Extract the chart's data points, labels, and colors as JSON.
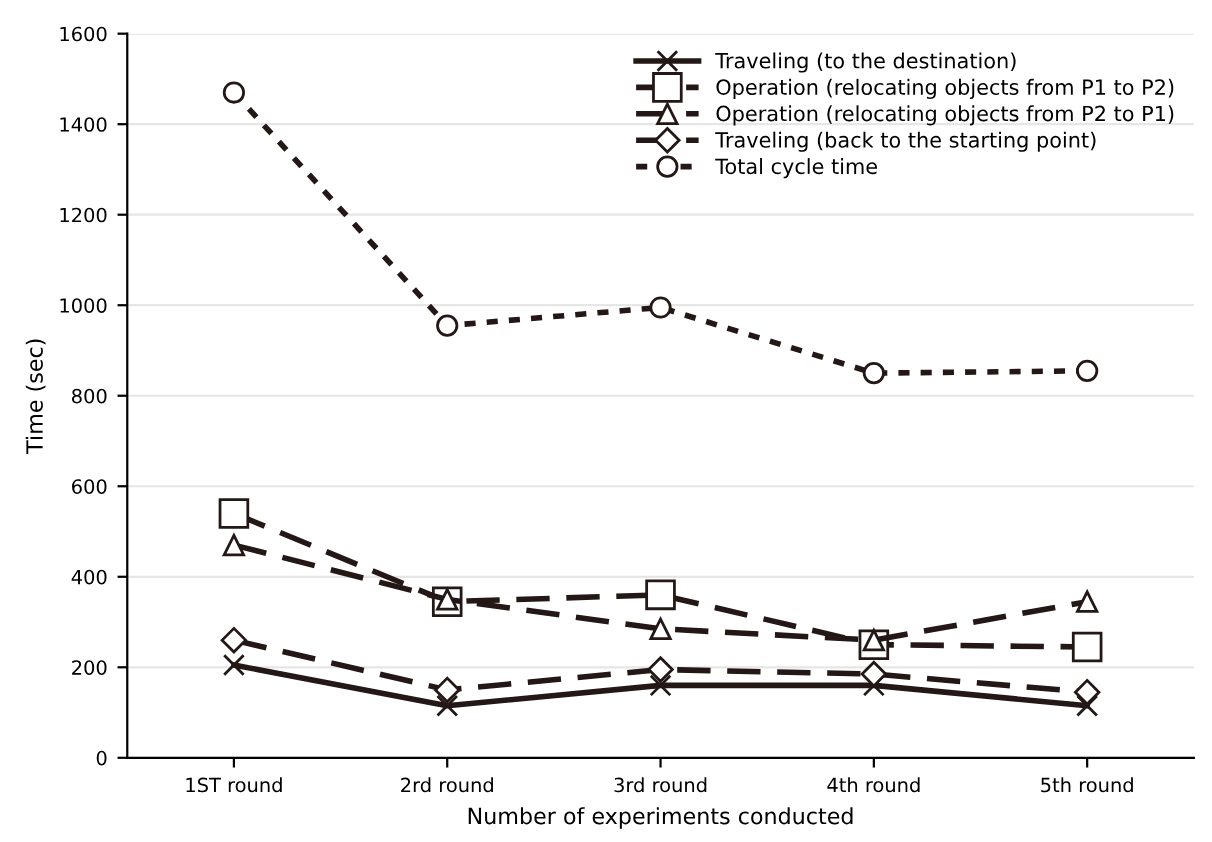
{
  "chart_data": {
    "type": "line",
    "xlabel": "Number of experiments conducted",
    "ylabel": "Time (sec)",
    "categories": [
      "1ST round",
      "2rd round",
      "3rd round",
      "4th round",
      "5th round"
    ],
    "series": [
      {
        "name": "Traveling (to the destination)",
        "color": "#231815",
        "values": [
          205,
          115,
          160,
          160,
          115
        ],
        "marker": "cross",
        "line_style": "solid"
      },
      {
        "name": "Operation (relocating objects from P1 to P2)",
        "color": "#231815",
        "values": [
          540,
          345,
          360,
          250,
          245
        ],
        "marker": "square",
        "line_style": "dashed"
      },
      {
        "name": "Operation (relocating objects from P2 to P1)",
        "color": "#231815",
        "values": [
          470,
          350,
          285,
          260,
          345
        ],
        "marker": "triangle",
        "line_style": "dashed"
      },
      {
        "name": "Traveling (back to the starting point)",
        "color": "#231815",
        "values": [
          260,
          150,
          195,
          185,
          145
        ],
        "marker": "diamond",
        "line_style": "dashed"
      },
      {
        "name": "Total cycle time",
        "color": "#231815",
        "values": [
          1470,
          955,
          995,
          850,
          855
        ],
        "marker": "circle",
        "line_style": "dotted"
      }
    ],
    "ylim": [
      0,
      1600
    ],
    "yticks": [
      0,
      200,
      400,
      600,
      800,
      1000,
      1200,
      1400,
      1600
    ],
    "grid": "y",
    "legend": "top right"
  }
}
